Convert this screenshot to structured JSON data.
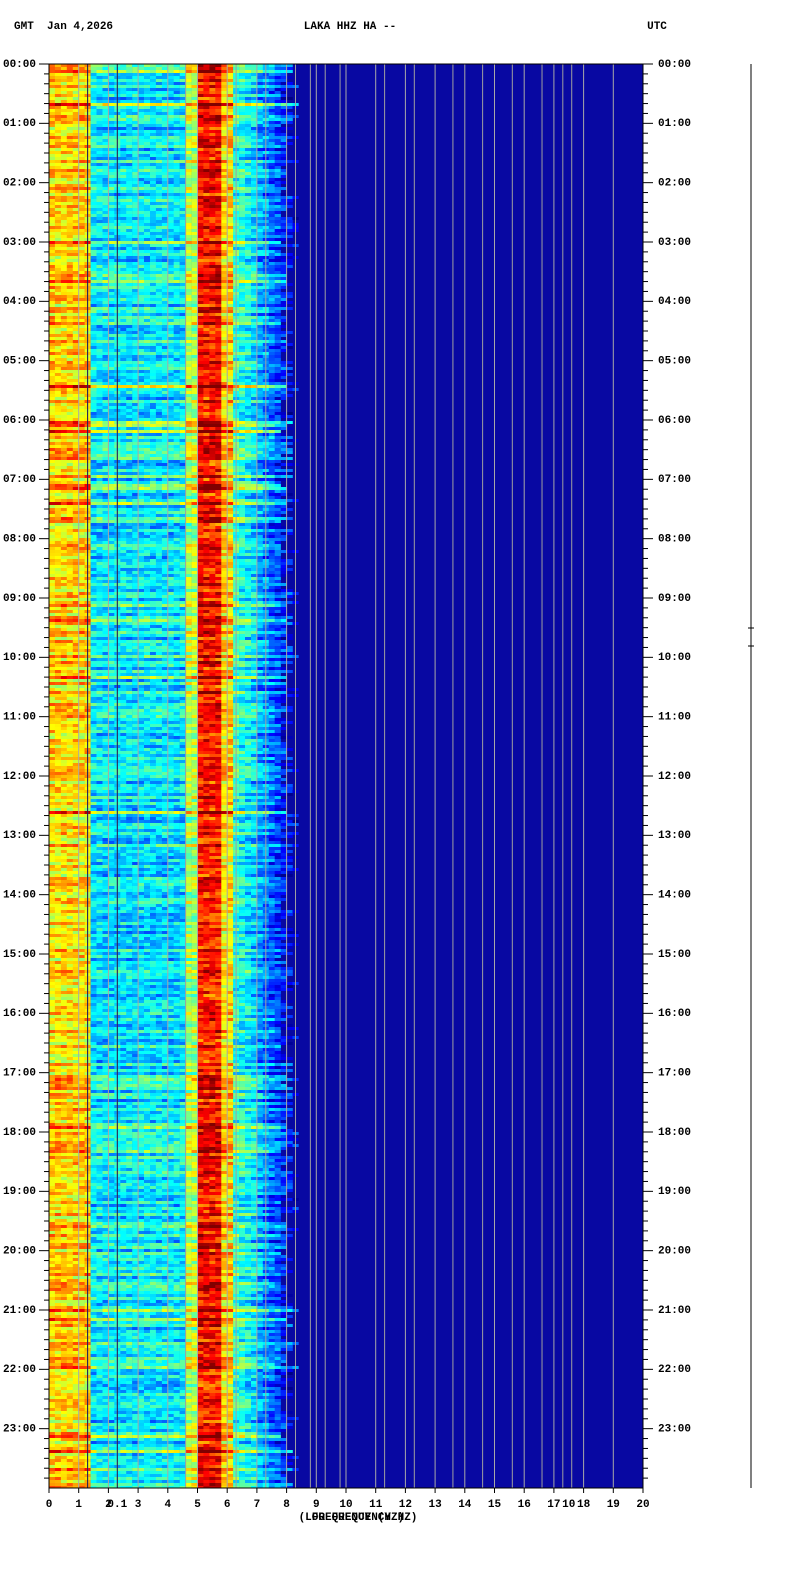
{
  "header": {
    "left": "GMT  Jan 4,2026",
    "center": "LAKA HHZ HA --",
    "right": "UTC"
  },
  "chart_data": {
    "type": "spectrogram",
    "x_label": "FREQUENCY (HZ)",
    "x_label_log": "(LOG FREQUENCY HZ)",
    "xlim": [
      0,
      20
    ],
    "xticks": [
      0,
      1,
      2,
      3,
      4,
      5,
      6,
      7,
      8,
      9,
      10,
      11,
      12,
      13,
      14,
      15,
      16,
      17,
      18,
      19,
      20
    ],
    "log_ticks": [
      {
        "value": 2.3,
        "label": "0.1"
      },
      {
        "value": 17.5,
        "label": "10"
      }
    ],
    "ylim": [
      0,
      24
    ],
    "yticks": [
      {
        "value": 0,
        "label": "00:00"
      },
      {
        "value": 1,
        "label": "01:00"
      },
      {
        "value": 2,
        "label": "02:00"
      },
      {
        "value": 3,
        "label": "03:00"
      },
      {
        "value": 4,
        "label": "04:00"
      },
      {
        "value": 5,
        "label": "05:00"
      },
      {
        "value": 6,
        "label": "06:00"
      },
      {
        "value": 7,
        "label": "07:00"
      },
      {
        "value": 8,
        "label": "08:00"
      },
      {
        "value": 9,
        "label": "09:00"
      },
      {
        "value": 10,
        "label": "10:00"
      },
      {
        "value": 11,
        "label": "11:00"
      },
      {
        "value": 12,
        "label": "12:00"
      },
      {
        "value": 13,
        "label": "13:00"
      },
      {
        "value": 14,
        "label": "14:00"
      },
      {
        "value": 15,
        "label": "15:00"
      },
      {
        "value": 16,
        "label": "16:00"
      },
      {
        "value": 17,
        "label": "17:00"
      },
      {
        "value": 18,
        "label": "18:00"
      },
      {
        "value": 19,
        "label": "19:00"
      },
      {
        "value": 20,
        "label": "20:00"
      },
      {
        "value": 21,
        "label": "21:00"
      },
      {
        "value": 22,
        "label": "22:00"
      },
      {
        "value": 23,
        "label": "23:00"
      }
    ]
  }
}
